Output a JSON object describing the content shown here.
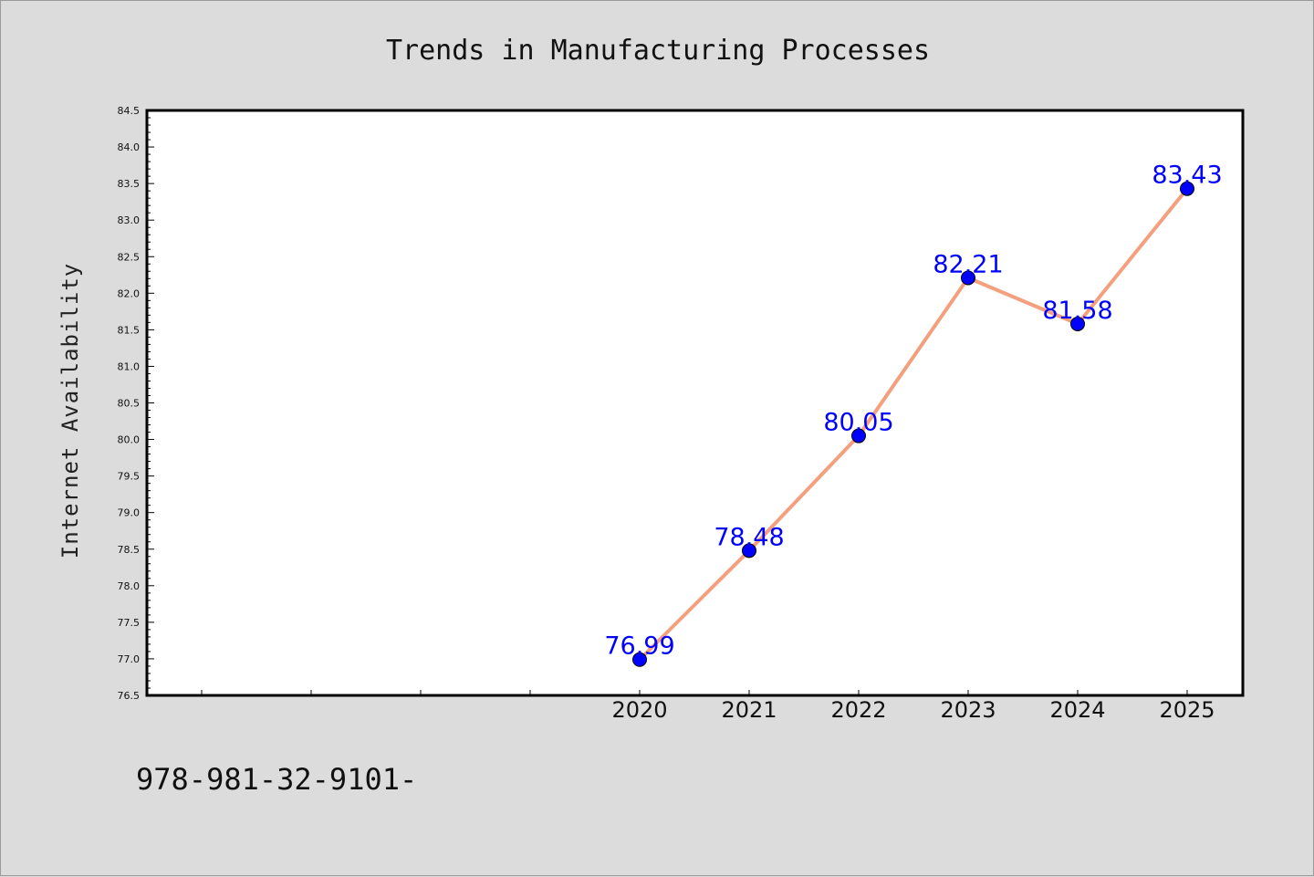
{
  "chart_data": {
    "type": "line",
    "title": "Trends in Manufacturing Processes",
    "xlabel": "",
    "ylabel": "Internet Availability",
    "x": [
      "2020",
      "2021",
      "2022",
      "2023",
      "2024",
      "2025"
    ],
    "series": [
      {
        "values": [
          76.99,
          78.48,
          80.05,
          82.21,
          81.58,
          83.43
        ]
      }
    ],
    "data_labels": [
      "76.99",
      "78.48",
      "80.05",
      "82.21",
      "81.58",
      "83.43"
    ],
    "ylim": [
      76.5,
      84.5
    ],
    "yticks": [
      "76.5",
      "77.0",
      "77.5",
      "78.0",
      "78.5",
      "79.0",
      "79.5",
      "80.0",
      "80.5",
      "81.0",
      "81.5",
      "82.0",
      "82.5",
      "83.0",
      "83.5",
      "84.0",
      "84.5"
    ],
    "xaxis_leading_empty_slots": 4,
    "grid": false,
    "line_color": "#f4a07e",
    "marker_color": "#0000ff",
    "label_color": "#0000ff",
    "background": "#dcdcdc",
    "plot_background": "#ffffff"
  },
  "footer": {
    "caption": "978-981-32-9101-"
  }
}
